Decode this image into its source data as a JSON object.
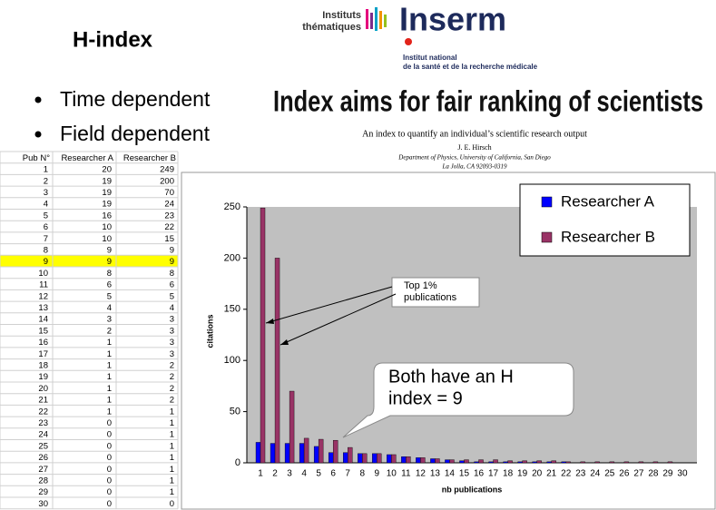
{
  "slide": {
    "title": "H-index",
    "bullets": [
      "Time dependent",
      "Field dependent"
    ]
  },
  "logo": {
    "group": [
      "Instituts",
      "thématiques"
    ],
    "name": "Inserm",
    "tagline": [
      "Institut national",
      "de la santé et de la recherche médicale"
    ]
  },
  "paper": {
    "headline": "Index aims for fair ranking of scientists",
    "title": "An index to quantify an individual’s scientific research output",
    "author": "J. E. Hirsch",
    "affiliation": [
      "Department of Physics, University of California, San Diego",
      "La Jolla, CA 92093-0319"
    ]
  },
  "table": {
    "header": [
      "Pub N°",
      "Researcher A",
      "Researcher B"
    ],
    "rows": [
      [
        1,
        20,
        249
      ],
      [
        2,
        19,
        200
      ],
      [
        3,
        19,
        70
      ],
      [
        4,
        19,
        24
      ],
      [
        5,
        16,
        23
      ],
      [
        6,
        10,
        22
      ],
      [
        7,
        10,
        15
      ],
      [
        8,
        9,
        9
      ],
      [
        9,
        9,
        9
      ],
      [
        10,
        8,
        8
      ],
      [
        11,
        6,
        6
      ],
      [
        12,
        5,
        5
      ],
      [
        13,
        4,
        4
      ],
      [
        14,
        3,
        3
      ],
      [
        15,
        2,
        3
      ],
      [
        16,
        1,
        3
      ],
      [
        17,
        1,
        3
      ],
      [
        18,
        1,
        2
      ],
      [
        19,
        1,
        2
      ],
      [
        20,
        1,
        2
      ],
      [
        21,
        1,
        2
      ],
      [
        22,
        1,
        1
      ],
      [
        23,
        0,
        1
      ],
      [
        24,
        0,
        1
      ],
      [
        25,
        0,
        1
      ],
      [
        26,
        0,
        1
      ],
      [
        27,
        0,
        1
      ],
      [
        28,
        0,
        1
      ],
      [
        29,
        0,
        1
      ],
      [
        30,
        0,
        0
      ]
    ],
    "highlight": {
      "row": 9,
      "color": "#ffff00"
    }
  },
  "chart_data": {
    "type": "bar",
    "x_label": "nb publications",
    "y_label": "citations",
    "categories": [
      1,
      2,
      3,
      4,
      5,
      6,
      7,
      8,
      9,
      10,
      11,
      12,
      13,
      14,
      15,
      16,
      17,
      18,
      19,
      20,
      21,
      22,
      23,
      24,
      25,
      26,
      27,
      28,
      29,
      30
    ],
    "series": [
      {
        "name": "Researcher A",
        "color": "#0000ff",
        "values": [
          20,
          19,
          19,
          19,
          16,
          10,
          10,
          9,
          9,
          8,
          6,
          5,
          4,
          3,
          2,
          1,
          1,
          1,
          1,
          1,
          1,
          1,
          0,
          0,
          0,
          0,
          0,
          0,
          0,
          0
        ]
      },
      {
        "name": "Researcher B",
        "color": "#993366",
        "values": [
          249,
          200,
          70,
          24,
          23,
          22,
          15,
          9,
          9,
          8,
          6,
          5,
          4,
          3,
          3,
          3,
          3,
          2,
          2,
          2,
          2,
          1,
          1,
          1,
          1,
          1,
          1,
          1,
          1,
          0
        ]
      }
    ],
    "ylim": [
      0,
      250
    ],
    "yticks": [
      0,
      50,
      100,
      150,
      200,
      250
    ],
    "grid": false,
    "legend": "top-right",
    "annotations": [
      {
        "lines": [
          "Top 1%",
          "publications"
        ]
      },
      {
        "lines": [
          "Both have an H",
          "index = 9"
        ]
      }
    ]
  }
}
